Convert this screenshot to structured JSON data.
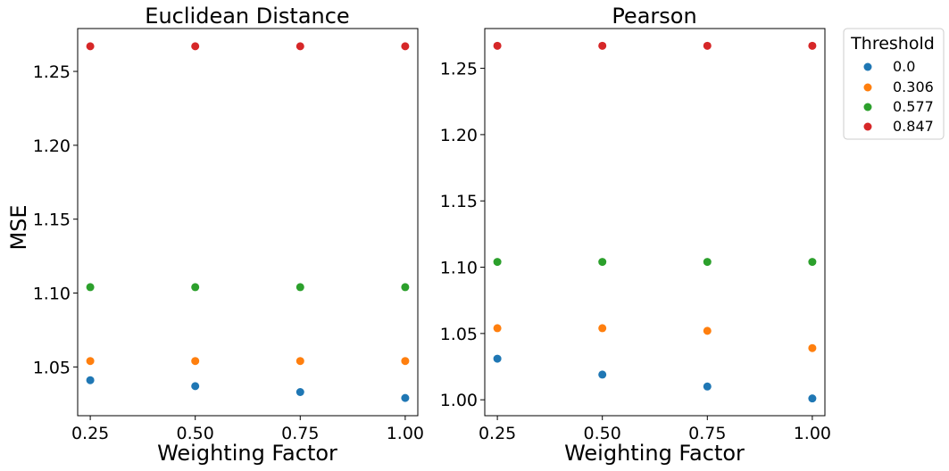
{
  "chart_data": [
    {
      "type": "scatter",
      "title": "Euclidean Distance",
      "xlabel": "Weighting Factor",
      "ylabel": "MSE",
      "x_ticks": [
        "0.25",
        "0.50",
        "0.75",
        "1.00"
      ],
      "y_ticks": [
        "1.05",
        "1.10",
        "1.15",
        "1.20",
        "1.25"
      ],
      "xlim": [
        0.22,
        1.03
      ],
      "ylim": [
        1.017,
        1.279
      ],
      "grid": false,
      "series": [
        {
          "name": "0.0",
          "color": "#1f77b4",
          "points": [
            [
              0.25,
              1.041
            ],
            [
              0.5,
              1.037
            ],
            [
              0.75,
              1.033
            ],
            [
              1.0,
              1.029
            ]
          ]
        },
        {
          "name": "0.306",
          "color": "#ff7f0e",
          "points": [
            [
              0.25,
              1.054
            ],
            [
              0.5,
              1.054
            ],
            [
              0.75,
              1.054
            ],
            [
              1.0,
              1.054
            ]
          ]
        },
        {
          "name": "0.577",
          "color": "#2ca02c",
          "points": [
            [
              0.25,
              1.104
            ],
            [
              0.5,
              1.104
            ],
            [
              0.75,
              1.104
            ],
            [
              1.0,
              1.104
            ]
          ]
        },
        {
          "name": "0.847",
          "color": "#d62728",
          "points": [
            [
              0.25,
              1.267
            ],
            [
              0.5,
              1.267
            ],
            [
              0.75,
              1.267
            ],
            [
              1.0,
              1.267
            ]
          ]
        }
      ]
    },
    {
      "type": "scatter",
      "title": "Pearson",
      "xlabel": "Weighting Factor",
      "ylabel": "",
      "x_ticks": [
        "0.25",
        "0.50",
        "0.75",
        "1.00"
      ],
      "y_ticks": [
        "1.00",
        "1.05",
        "1.10",
        "1.15",
        "1.20",
        "1.25"
      ],
      "xlim": [
        0.22,
        1.03
      ],
      "ylim": [
        0.988,
        1.28
      ],
      "grid": false,
      "series": [
        {
          "name": "0.0",
          "color": "#1f77b4",
          "points": [
            [
              0.25,
              1.031
            ],
            [
              0.5,
              1.019
            ],
            [
              0.75,
              1.01
            ],
            [
              1.0,
              1.001
            ]
          ]
        },
        {
          "name": "0.306",
          "color": "#ff7f0e",
          "points": [
            [
              0.25,
              1.054
            ],
            [
              0.5,
              1.054
            ],
            [
              0.75,
              1.052
            ],
            [
              1.0,
              1.039
            ]
          ]
        },
        {
          "name": "0.577",
          "color": "#2ca02c",
          "points": [
            [
              0.25,
              1.104
            ],
            [
              0.5,
              1.104
            ],
            [
              0.75,
              1.104
            ],
            [
              1.0,
              1.104
            ]
          ]
        },
        {
          "name": "0.847",
          "color": "#d62728",
          "points": [
            [
              0.25,
              1.267
            ],
            [
              0.5,
              1.267
            ],
            [
              0.75,
              1.267
            ],
            [
              1.0,
              1.267
            ]
          ]
        }
      ]
    }
  ],
  "legend": {
    "title": "Threshold",
    "placement": "outside-right",
    "entries": [
      {
        "label": "0.0",
        "color": "#1f77b4"
      },
      {
        "label": "0.306",
        "color": "#ff7f0e"
      },
      {
        "label": "0.577",
        "color": "#2ca02c"
      },
      {
        "label": "0.847",
        "color": "#d62728"
      }
    ]
  }
}
